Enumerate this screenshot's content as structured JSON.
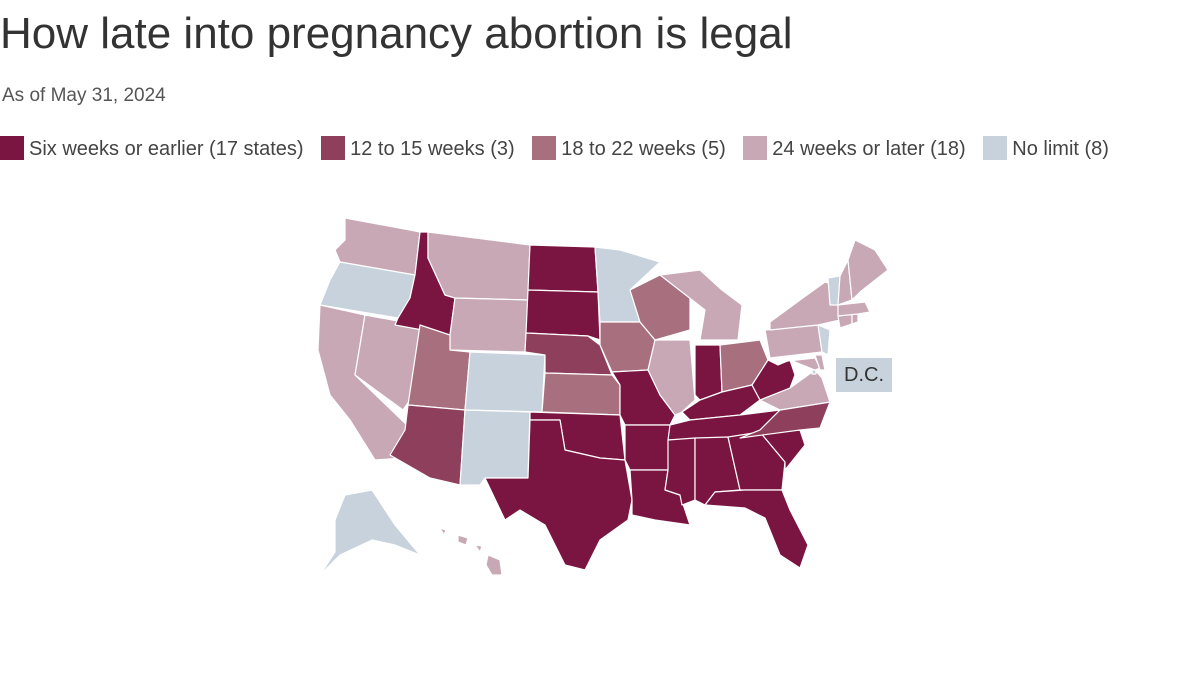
{
  "title": "How late into pregnancy abortion is legal",
  "subtitle": "As of May 31, 2024",
  "colors": {
    "six_weeks": "#7a1441",
    "12_15_weeks": "#8e3f5c",
    "18_22_weeks": "#a8707f",
    "24_weeks": "#c8a8b5",
    "no_limit": "#c8d2dc"
  },
  "legend": [
    {
      "label": "Six weeks or earlier (17 states)",
      "color": "#7a1441"
    },
    {
      "label": "12 to 15 weeks (3)",
      "color": "#8e3f5c"
    },
    {
      "label": "18 to 22 weeks (5)",
      "color": "#a8707f"
    },
    {
      "label": "24 weeks or later (18)",
      "color": "#c8a8b5"
    },
    {
      "label": "No limit (8)",
      "color": "#c8d2dc"
    }
  ],
  "dc_label": "D.C.",
  "state_categories": {
    "six_weeks": [
      "ID",
      "ND",
      "SD",
      "TX",
      "OK",
      "MO",
      "AR",
      "LA",
      "MS",
      "AL",
      "GA",
      "TN",
      "KY",
      "IN",
      "WV",
      "SC",
      "FL"
    ],
    "12_15_weeks": [
      "NE",
      "AZ",
      "NC"
    ],
    "18_22_weeks": [
      "UT",
      "KS",
      "IA",
      "WI",
      "OH"
    ],
    "24_weeks": [
      "WA",
      "CA",
      "NV",
      "MT",
      "WY",
      "IL",
      "MI",
      "NY",
      "PA",
      "VA",
      "MD",
      "ME",
      "NH",
      "MA",
      "CT",
      "RI",
      "DE",
      "HI"
    ],
    "no_limit": [
      "OR",
      "CO",
      "NM",
      "MN",
      "NJ",
      "VT",
      "AK",
      "DC"
    ]
  }
}
